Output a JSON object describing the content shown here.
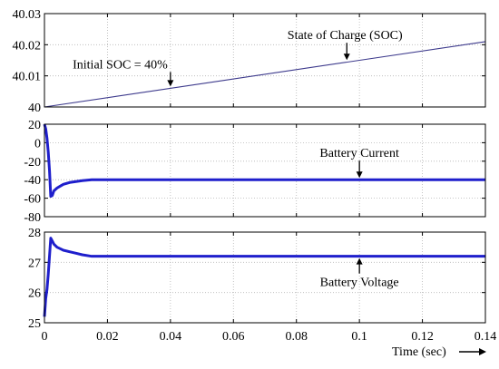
{
  "chart_data": [
    {
      "type": "line",
      "title": "",
      "xlabel": "",
      "ylabel": "",
      "xlim": [
        0,
        0.14
      ],
      "ylim": [
        40,
        40.03
      ],
      "yticks": [
        40,
        40.01,
        40.02,
        40.03
      ],
      "ytick_labels": [
        "40",
        "40.01",
        "40.02",
        "40.03"
      ],
      "grid": true,
      "series": [
        {
          "color": "#3d3a8c",
          "x": [
            0,
            0.14
          ],
          "y": [
            40.0,
            40.021
          ]
        }
      ],
      "annotations": [
        {
          "text": "Initial SOC = 40%",
          "x": 0.04,
          "y": 40.006
        },
        {
          "text": "State of Charge (SOC)",
          "x": 0.096,
          "y": 40.0145
        }
      ]
    },
    {
      "type": "line",
      "title": "",
      "xlabel": "",
      "ylabel": "",
      "xlim": [
        0,
        0.14
      ],
      "ylim": [
        -80,
        20
      ],
      "yticks": [
        -80,
        -60,
        -40,
        -20,
        0,
        20
      ],
      "ytick_labels": [
        "-80",
        "-60",
        "-40",
        "-20",
        "0",
        "20"
      ],
      "grid": true,
      "series": [
        {
          "color": "#1f1fcc",
          "x": [
            0,
            0.0004,
            0.0008,
            0.0012,
            0.0016,
            0.002,
            0.0025,
            0.003,
            0.004,
            0.005,
            0.006,
            0.008,
            0.01,
            0.012,
            0.015,
            0.02,
            0.05,
            0.1,
            0.14
          ],
          "y": [
            20,
            15,
            5,
            -10,
            -30,
            -58,
            -57,
            -52,
            -49,
            -47,
            -45,
            -43,
            -42,
            -41,
            -40,
            -40,
            -40,
            -40,
            -40
          ]
        }
      ],
      "annotations": [
        {
          "text": "Battery Current",
          "x": 0.1,
          "y": -40
        }
      ]
    },
    {
      "type": "line",
      "title": "",
      "xlabel": "Time (sec)",
      "ylabel": "",
      "xlim": [
        0,
        0.14
      ],
      "ylim": [
        25,
        28
      ],
      "yticks": [
        25,
        26,
        27,
        28
      ],
      "ytick_labels": [
        "25",
        "26",
        "27",
        "28"
      ],
      "xticks": [
        0,
        0.02,
        0.04,
        0.06,
        0.08,
        0.1,
        0.12,
        0.14
      ],
      "xtick_labels": [
        "0",
        "0.02",
        "0.04",
        "0.06",
        "0.08",
        "0.1",
        "0.12",
        "0.14"
      ],
      "grid": true,
      "series": [
        {
          "color": "#1f1fcc",
          "x": [
            0,
            0.0004,
            0.0008,
            0.0012,
            0.0016,
            0.002,
            0.0025,
            0.003,
            0.004,
            0.005,
            0.006,
            0.008,
            0.01,
            0.012,
            0.015,
            0.02,
            0.05,
            0.1,
            0.14
          ],
          "y": [
            25.2,
            25.8,
            26.1,
            26.6,
            27.2,
            27.8,
            27.7,
            27.6,
            27.5,
            27.45,
            27.4,
            27.35,
            27.3,
            27.25,
            27.2,
            27.2,
            27.2,
            27.2,
            27.2
          ]
        }
      ],
      "annotations": [
        {
          "text": "Battery Voltage",
          "x": 0.1,
          "y": 27.2
        }
      ]
    }
  ]
}
